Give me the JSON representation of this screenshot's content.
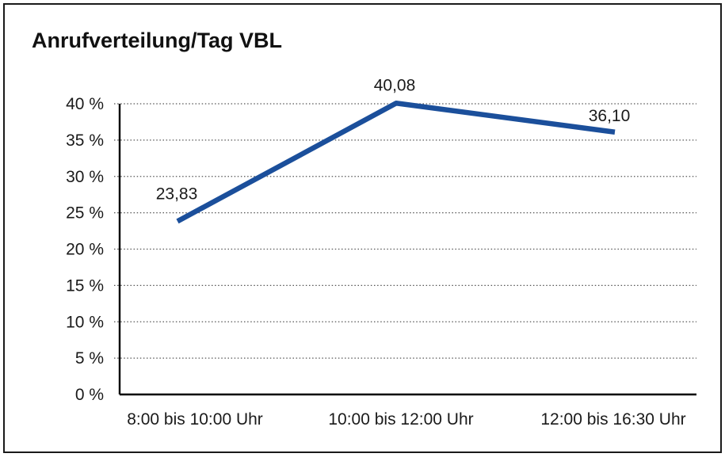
{
  "chart_data": {
    "type": "line",
    "title": "Anrufverteilung/Tag VBL",
    "categories": [
      "8:00 bis 10:00 Uhr",
      "10:00 bis 12:00 Uhr",
      "12:00 bis 16:30 Uhr"
    ],
    "series": [
      {
        "name": "Anrufverteilung",
        "values": [
          23.83,
          40.08,
          36.1
        ],
        "point_labels": [
          "23,83",
          "40,08",
          "36,10"
        ]
      }
    ],
    "xlabel": "",
    "ylabel": "",
    "ylim": [
      0,
      40
    ],
    "y_ticks": [
      0,
      5,
      10,
      15,
      20,
      25,
      30,
      35,
      40
    ],
    "y_tick_labels": [
      "0 %",
      "5 %",
      "10 %",
      "15 %",
      "20 %",
      "25 %",
      "30 %",
      "35 %",
      "40 %"
    ],
    "grid": "horizontal-dotted",
    "legend_position": "none",
    "line_color": "#1B4F9B",
    "gridline_color": "#555555",
    "axis_color": "#000000",
    "frame_border_color": "#1a1a1a"
  }
}
